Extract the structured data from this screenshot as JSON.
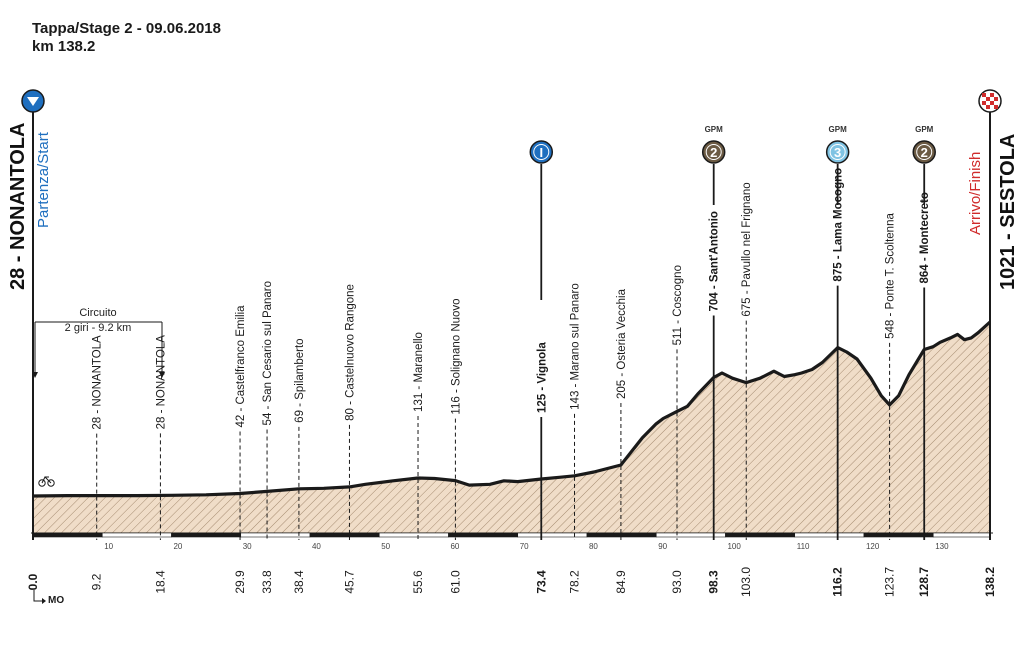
{
  "header": {
    "title": "Tappa/Stage 2 - 09.06.2018",
    "distance": "km 138.2"
  },
  "start": {
    "name": "28 - NONANTOLA",
    "label": "Partenza/Start"
  },
  "finish": {
    "name": "1021 - SESTOLA",
    "label": "Arrivo/Finish"
  },
  "circuit": {
    "line1": "Circuito",
    "line2": "2 giri - 9.2 km"
  },
  "gpm_label": "GPM",
  "sprint_mark": "I",
  "mo_label": "MO",
  "colors": {
    "profile_fill": "#f0ddc8",
    "hatch": "#8a7560",
    "start_blue": "#1f6fbf",
    "finish_red": "#d02b2b",
    "gpm_brown": "#6b5a43",
    "gpm_light": "#7fc3e3"
  },
  "chart_data": {
    "type": "area",
    "title": "Tappa/Stage 2 - 09.06.2018",
    "xlabel": "",
    "ylabel": "",
    "xlim": [
      0,
      138.2
    ],
    "ylim": [
      0,
      1300
    ],
    "profile": [
      [
        0,
        28
      ],
      [
        5,
        30
      ],
      [
        10,
        30
      ],
      [
        15,
        30
      ],
      [
        20,
        32
      ],
      [
        25,
        35
      ],
      [
        29.9,
        42
      ],
      [
        33.8,
        54
      ],
      [
        38.4,
        69
      ],
      [
        42,
        72
      ],
      [
        45.7,
        80
      ],
      [
        48,
        95
      ],
      [
        52,
        115
      ],
      [
        55.6,
        131
      ],
      [
        58,
        128
      ],
      [
        61,
        116
      ],
      [
        63,
        90
      ],
      [
        66,
        95
      ],
      [
        68,
        115
      ],
      [
        70,
        110
      ],
      [
        73.4,
        125
      ],
      [
        76,
        135
      ],
      [
        78.2,
        143
      ],
      [
        81,
        165
      ],
      [
        84.9,
        205
      ],
      [
        86,
        260
      ],
      [
        88,
        360
      ],
      [
        90,
        440
      ],
      [
        91,
        470
      ],
      [
        93,
        511
      ],
      [
        94.5,
        540
      ],
      [
        96,
        610
      ],
      [
        98.3,
        704
      ],
      [
        99.5,
        730
      ],
      [
        101,
        700
      ],
      [
        103,
        675
      ],
      [
        105,
        700
      ],
      [
        107,
        740
      ],
      [
        108.5,
        710
      ],
      [
        110,
        720
      ],
      [
        111,
        730
      ],
      [
        112.5,
        750
      ],
      [
        114,
        790
      ],
      [
        116.2,
        875
      ],
      [
        117.5,
        850
      ],
      [
        119,
        810
      ],
      [
        121,
        700
      ],
      [
        122.5,
        600
      ],
      [
        123.7,
        548
      ],
      [
        125,
        600
      ],
      [
        126.5,
        720
      ],
      [
        128.7,
        864
      ],
      [
        130,
        880
      ],
      [
        131,
        905
      ],
      [
        132.5,
        930
      ],
      [
        133.5,
        950
      ],
      [
        134.5,
        920
      ],
      [
        135.5,
        930
      ],
      [
        136.5,
        960
      ],
      [
        138.2,
        1021
      ]
    ],
    "points": [
      {
        "km": "0.0",
        "name": "28 - NONANTOLA",
        "x": 0,
        "bold": true
      },
      {
        "km": "9.2",
        "name": "28 - NONANTOLA",
        "x": 9.2,
        "bold": false
      },
      {
        "km": "18.4",
        "name": "28 - NONANTOLA",
        "x": 18.4,
        "bold": false
      },
      {
        "km": "29.9",
        "name": "42 - Castelfranco Emilia",
        "x": 29.9,
        "bold": false
      },
      {
        "km": "33.8",
        "name": "54 - San Cesario sul Panaro",
        "x": 33.8,
        "bold": false
      },
      {
        "km": "38.4",
        "name": "69 - Spilamberto",
        "x": 38.4,
        "bold": false
      },
      {
        "km": "45.7",
        "name": "80 - Castelnuovo Rangone",
        "x": 45.7,
        "bold": false
      },
      {
        "km": "55.6",
        "name": "131 - Maranello",
        "x": 55.6,
        "bold": false
      },
      {
        "km": "61.0",
        "name": "116 - Solignano Nuovo",
        "x": 61,
        "bold": false
      },
      {
        "km": "73.4",
        "name": "125 - Vignola",
        "x": 73.4,
        "bold": true
      },
      {
        "km": "78.2",
        "name": "143 - Marano sul Panaro",
        "x": 78.2,
        "bold": false
      },
      {
        "km": "84.9",
        "name": "205 - Osteria Vecchia",
        "x": 84.9,
        "bold": false
      },
      {
        "km": "93.0",
        "name": "511 - Coscogno",
        "x": 93,
        "bold": false
      },
      {
        "km": "98.3",
        "name": "704 - Sant'Antonio",
        "x": 98.3,
        "bold": true
      },
      {
        "km": "103.0",
        "name": "675 - Pavullo nel Frignano",
        "x": 103,
        "bold": false
      },
      {
        "km": "116.2",
        "name": "875 - Lama Mocogno",
        "x": 116.2,
        "bold": true
      },
      {
        "km": "123.7",
        "name": "548 - Ponte T. Scoltenna",
        "x": 123.7,
        "bold": false
      },
      {
        "km": "128.7",
        "name": "864 - Montecreto",
        "x": 128.7,
        "bold": true
      },
      {
        "km": "138.2",
        "name": "1021 - SESTOLA",
        "x": 138.2,
        "bold": true
      }
    ],
    "scale_ticks": [
      "10",
      "20",
      "30",
      "40",
      "50",
      "60",
      "70",
      "80",
      "90",
      "100",
      "110",
      "120",
      "130"
    ],
    "gpm": [
      {
        "x": 98.3,
        "category": "2"
      },
      {
        "x": 116.2,
        "category": "3"
      },
      {
        "x": 128.7,
        "category": "2"
      }
    ],
    "sprint": {
      "x": 73.4
    }
  }
}
